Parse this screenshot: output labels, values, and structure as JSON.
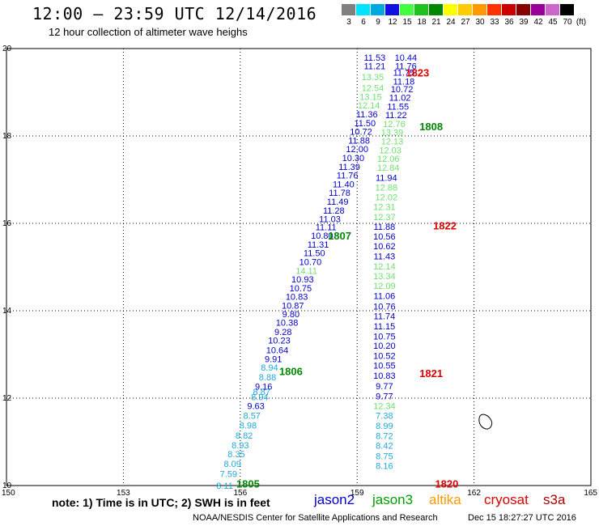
{
  "header": {
    "title": "12:00 — 23:59 UTC 12/14/2016",
    "subtitle": "12 hour collection of altimeter wave heighs"
  },
  "color_scale": {
    "swatches": [
      {
        "label": "3",
        "color": "#808080"
      },
      {
        "label": "6",
        "color": "#00e5ff"
      },
      {
        "label": "9",
        "color": "#00a8e0"
      },
      {
        "label": "12",
        "color": "#1010e0"
      },
      {
        "label": "15",
        "color": "#40ff40"
      },
      {
        "label": "18",
        "color": "#20c020"
      },
      {
        "label": "21",
        "color": "#008800"
      },
      {
        "label": "24",
        "color": "#ffff00"
      },
      {
        "label": "27",
        "color": "#ffcc00"
      },
      {
        "label": "30",
        "color": "#ff9900"
      },
      {
        "label": "33",
        "color": "#ff3300"
      },
      {
        "label": "36",
        "color": "#cc0000"
      },
      {
        "label": "39",
        "color": "#880000"
      },
      {
        "label": "42",
        "color": "#990099"
      },
      {
        "label": "45",
        "color": "#cc66cc"
      },
      {
        "label": "70",
        "color": "#000000"
      }
    ],
    "unit": "(ft)"
  },
  "map": {
    "lon_ticks": [
      "150",
      "153",
      "156",
      "159",
      "162",
      "165"
    ],
    "lat_ticks": [
      "10",
      "12",
      "14",
      "16",
      "18",
      "20"
    ],
    "lon_range": [
      150,
      165
    ],
    "lat_range": [
      10,
      20
    ],
    "colors": {
      "jason2": "#0000c8",
      "jason3_light": "#70e070",
      "cyan": "#20a8d8",
      "pass_green": "#008800",
      "pass_red": "#dd0000"
    },
    "tracks": [
      {
        "name": "1805",
        "color_key": "cyan",
        "points": [
          {
            "lon": 155.6,
            "lat": 10.0,
            "v": "8.11",
            "c": "cyan"
          },
          {
            "lon": 155.7,
            "lat": 10.27,
            "v": "7.59",
            "c": "cyan"
          },
          {
            "lon": 155.8,
            "lat": 10.5,
            "v": "8.09",
            "c": "cyan"
          },
          {
            "lon": 155.9,
            "lat": 10.72,
            "v": "8.35",
            "c": "cyan"
          },
          {
            "lon": 156.0,
            "lat": 10.93,
            "v": "8.93",
            "c": "cyan"
          },
          {
            "lon": 156.1,
            "lat": 11.15,
            "v": "8.82",
            "c": "cyan"
          },
          {
            "lon": 156.2,
            "lat": 11.38,
            "v": "8.98",
            "c": "cyan"
          },
          {
            "lon": 156.3,
            "lat": 11.6,
            "v": "8.57",
            "c": "cyan"
          },
          {
            "lon": 156.4,
            "lat": 11.82,
            "v": "9.63",
            "c": "jason2"
          },
          {
            "lon": 156.5,
            "lat": 12.03,
            "v": "8.94",
            "c": "cyan"
          },
          {
            "lon": 156.55,
            "lat": 12.15,
            "v": "8.87",
            "c": "cyan"
          },
          {
            "lon": 156.6,
            "lat": 12.27,
            "v": "9.16",
            "c": "jason2"
          },
          {
            "lon": 156.7,
            "lat": 12.48,
            "v": "8.88",
            "c": "cyan"
          },
          {
            "lon": 156.75,
            "lat": 12.7,
            "v": "8.94",
            "c": "cyan"
          }
        ]
      },
      {
        "name": "1806",
        "color_key": "jason2",
        "points": [
          {
            "lon": 156.85,
            "lat": 12.9,
            "v": "9.91",
            "c": "jason2"
          },
          {
            "lon": 156.95,
            "lat": 13.1,
            "v": "10.64",
            "c": "jason2"
          },
          {
            "lon": 157.0,
            "lat": 13.32,
            "v": "10.23",
            "c": "jason2"
          },
          {
            "lon": 157.1,
            "lat": 13.52,
            "v": "9.28",
            "c": "jason2"
          },
          {
            "lon": 157.2,
            "lat": 13.73,
            "v": "10.38",
            "c": "jason2"
          },
          {
            "lon": 157.3,
            "lat": 13.93,
            "v": "9.80",
            "c": "jason2"
          },
          {
            "lon": 157.35,
            "lat": 14.12,
            "v": "10.87",
            "c": "jason2"
          },
          {
            "lon": 157.45,
            "lat": 14.32,
            "v": "10.83",
            "c": "jason2"
          },
          {
            "lon": 157.55,
            "lat": 14.52,
            "v": "10.75",
            "c": "jason2"
          },
          {
            "lon": 157.6,
            "lat": 14.72,
            "v": "10.93",
            "c": "jason2"
          },
          {
            "lon": 157.7,
            "lat": 14.92,
            "v": "14.11",
            "c": "jason3_light"
          },
          {
            "lon": 157.8,
            "lat": 15.12,
            "v": "10.70",
            "c": "jason2"
          },
          {
            "lon": 157.9,
            "lat": 15.32,
            "v": "11.50",
            "c": "jason2"
          },
          {
            "lon": 158.0,
            "lat": 15.52,
            "v": "11.31",
            "c": "jason2"
          },
          {
            "lon": 158.1,
            "lat": 15.72,
            "v": "10.80",
            "c": "jason2"
          },
          {
            "lon": 158.2,
            "lat": 15.92,
            "v": "11.11",
            "c": "jason2"
          }
        ]
      },
      {
        "name": "1807",
        "color_key": "jason2",
        "points": [
          {
            "lon": 158.3,
            "lat": 16.1,
            "v": "11.03",
            "c": "jason2"
          },
          {
            "lon": 158.4,
            "lat": 16.3,
            "v": "11.28",
            "c": "jason2"
          },
          {
            "lon": 158.5,
            "lat": 16.5,
            "v": "11.49",
            "c": "jason2"
          },
          {
            "lon": 158.55,
            "lat": 16.7,
            "v": "11.78",
            "c": "jason2"
          },
          {
            "lon": 158.65,
            "lat": 16.9,
            "v": "11.40",
            "c": "jason2"
          },
          {
            "lon": 158.75,
            "lat": 17.1,
            "v": "11.76",
            "c": "jason2"
          },
          {
            "lon": 158.8,
            "lat": 17.3,
            "v": "11.39",
            "c": "jason2"
          },
          {
            "lon": 158.9,
            "lat": 17.5,
            "v": "10.30",
            "c": "jason2"
          },
          {
            "lon": 159.0,
            "lat": 17.7,
            "v": "12.00",
            "c": "jason2"
          },
          {
            "lon": 159.05,
            "lat": 17.9,
            "v": "11.88",
            "c": "jason2"
          },
          {
            "lon": 159.1,
            "lat": 18.1,
            "v": "10.72",
            "c": "jason2"
          },
          {
            "lon": 159.2,
            "lat": 18.3,
            "v": "11.50",
            "c": "jason2"
          },
          {
            "lon": 159.25,
            "lat": 18.5,
            "v": "11.36",
            "c": "jason2"
          },
          {
            "lon": 159.3,
            "lat": 18.7,
            "v": "12.14",
            "c": "jason3_light"
          },
          {
            "lon": 159.35,
            "lat": 18.9,
            "v": "13.15",
            "c": "jason3_light"
          },
          {
            "lon": 159.4,
            "lat": 19.1,
            "v": "12.54",
            "c": "jason3_light"
          },
          {
            "lon": 159.4,
            "lat": 19.35,
            "v": "13.35",
            "c": "jason3_light"
          },
          {
            "lon": 159.45,
            "lat": 19.6,
            "v": "11.21",
            "c": "jason2"
          },
          {
            "lon": 159.45,
            "lat": 19.8,
            "v": "11.53",
            "c": "jason2"
          }
        ]
      },
      {
        "name": "1808",
        "color_key": "jason2",
        "points": [
          {
            "lon": 160.25,
            "lat": 19.8,
            "v": "10.44",
            "c": "jason2"
          },
          {
            "lon": 160.25,
            "lat": 19.6,
            "v": "11.76",
            "c": "jason2"
          },
          {
            "lon": 160.2,
            "lat": 19.45,
            "v": "11.75",
            "c": "jason2"
          },
          {
            "lon": 160.2,
            "lat": 19.25,
            "v": "11.18",
            "c": "jason2"
          },
          {
            "lon": 160.15,
            "lat": 19.07,
            "v": "10.72",
            "c": "jason2"
          },
          {
            "lon": 160.1,
            "lat": 18.88,
            "v": "11.02",
            "c": "jason2"
          },
          {
            "lon": 160.05,
            "lat": 18.68,
            "v": "11.55",
            "c": "jason2"
          },
          {
            "lon": 160.0,
            "lat": 18.48,
            "v": "11.22",
            "c": "jason2"
          },
          {
            "lon": 159.95,
            "lat": 18.28,
            "v": "12.76",
            "c": "jason3_light"
          },
          {
            "lon": 159.9,
            "lat": 18.08,
            "v": "13.39",
            "c": "jason3_light"
          },
          {
            "lon": 159.9,
            "lat": 17.88,
            "v": "12.13",
            "c": "jason3_light"
          },
          {
            "lon": 159.85,
            "lat": 17.68,
            "v": "12.03",
            "c": "jason3_light"
          },
          {
            "lon": 159.8,
            "lat": 17.48,
            "v": "12.06",
            "c": "jason3_light"
          },
          {
            "lon": 159.8,
            "lat": 17.28,
            "v": "12.84",
            "c": "jason3_light"
          },
          {
            "lon": 159.75,
            "lat": 17.05,
            "v": "11.94",
            "c": "jason2"
          },
          {
            "lon": 159.75,
            "lat": 16.82,
            "v": "12.88",
            "c": "jason3_light"
          }
        ]
      },
      {
        "name": "1822",
        "color_key": "jason3_light",
        "points": [
          {
            "lon": 159.75,
            "lat": 16.6,
            "v": "12.02",
            "c": "jason3_light"
          },
          {
            "lon": 159.7,
            "lat": 16.38,
            "v": "12.31",
            "c": "jason3_light"
          },
          {
            "lon": 159.7,
            "lat": 16.15,
            "v": "12.37",
            "c": "jason3_light"
          },
          {
            "lon": 159.7,
            "lat": 15.93,
            "v": "11.88",
            "c": "jason2"
          },
          {
            "lon": 159.7,
            "lat": 15.7,
            "v": "10.56",
            "c": "jason2"
          },
          {
            "lon": 159.7,
            "lat": 15.48,
            "v": "10.62",
            "c": "jason2"
          },
          {
            "lon": 159.7,
            "lat": 15.25,
            "v": "11.43",
            "c": "jason2"
          },
          {
            "lon": 159.7,
            "lat": 15.02,
            "v": "12.14",
            "c": "jason3_light"
          },
          {
            "lon": 159.7,
            "lat": 14.8,
            "v": "13.34",
            "c": "jason3_light"
          },
          {
            "lon": 159.7,
            "lat": 14.57,
            "v": "12.09",
            "c": "jason3_light"
          },
          {
            "lon": 159.7,
            "lat": 14.34,
            "v": "11.06",
            "c": "jason2"
          },
          {
            "lon": 159.7,
            "lat": 14.1,
            "v": "10.76",
            "c": "jason2"
          },
          {
            "lon": 159.7,
            "lat": 13.88,
            "v": "11.74",
            "c": "jason2"
          },
          {
            "lon": 159.7,
            "lat": 13.65,
            "v": "11.15",
            "c": "jason2"
          }
        ]
      },
      {
        "name": "1821",
        "color_key": "jason2",
        "points": [
          {
            "lon": 159.7,
            "lat": 13.42,
            "v": "10.75",
            "c": "jason2"
          },
          {
            "lon": 159.7,
            "lat": 13.2,
            "v": "10.20",
            "c": "jason2"
          },
          {
            "lon": 159.7,
            "lat": 12.97,
            "v": "10.52",
            "c": "jason2"
          },
          {
            "lon": 159.7,
            "lat": 12.75,
            "v": "10.55",
            "c": "jason2"
          },
          {
            "lon": 159.7,
            "lat": 12.52,
            "v": "10.83",
            "c": "jason2"
          },
          {
            "lon": 159.7,
            "lat": 12.28,
            "v": "9.77",
            "c": "jason2"
          },
          {
            "lon": 159.7,
            "lat": 12.05,
            "v": "9.77",
            "c": "jason2"
          },
          {
            "lon": 159.7,
            "lat": 11.82,
            "v": "12.34",
            "c": "jason3_light"
          },
          {
            "lon": 159.7,
            "lat": 11.6,
            "v": "7.38",
            "c": "cyan"
          },
          {
            "lon": 159.7,
            "lat": 11.37,
            "v": "8.99",
            "c": "cyan"
          },
          {
            "lon": 159.7,
            "lat": 11.14,
            "v": "8.72",
            "c": "cyan"
          },
          {
            "lon": 159.7,
            "lat": 10.92,
            "v": "8.42",
            "c": "cyan"
          },
          {
            "lon": 159.7,
            "lat": 10.68,
            "v": "8.75",
            "c": "cyan"
          },
          {
            "lon": 159.7,
            "lat": 10.45,
            "v": "8.16",
            "c": "cyan"
          }
        ]
      }
    ],
    "pass_labels": [
      {
        "text": "1823",
        "lon": 160.55,
        "lat": 19.45,
        "color_key": "pass_red"
      },
      {
        "text": "1808",
        "lon": 160.9,
        "lat": 18.22,
        "color_key": "pass_green"
      },
      {
        "text": "1822",
        "lon": 161.25,
        "lat": 15.95,
        "color_key": "pass_red"
      },
      {
        "text": "1807",
        "lon": 158.55,
        "lat": 15.72,
        "color_key": "pass_green"
      },
      {
        "text": "1806",
        "lon": 157.3,
        "lat": 12.62,
        "color_key": "pass_green"
      },
      {
        "text": "1821",
        "lon": 160.9,
        "lat": 12.57,
        "color_key": "pass_red"
      },
      {
        "text": "1805",
        "lon": 156.2,
        "lat": 10.05,
        "color_key": "pass_green"
      },
      {
        "text": "1820",
        "lon": 161.3,
        "lat": 10.05,
        "color_key": "pass_red"
      }
    ]
  },
  "footer": {
    "note": "note: 1) Time is in UTC; 2) SWH is in feet",
    "legend": [
      {
        "label": "jason2",
        "color": "#0000c8"
      },
      {
        "label": "jason3",
        "color": "#00a000"
      },
      {
        "label": "altika",
        "color": "#ff9900"
      },
      {
        "label": "cryosat",
        "color": "#dd0000"
      },
      {
        "label": "s3a",
        "color": "#aa0000"
      }
    ],
    "credit": "NOAA/NESDIS Center for Satellite Applications and Research",
    "timestamp": "Dec 15 18:27:27 UTC 2016"
  }
}
